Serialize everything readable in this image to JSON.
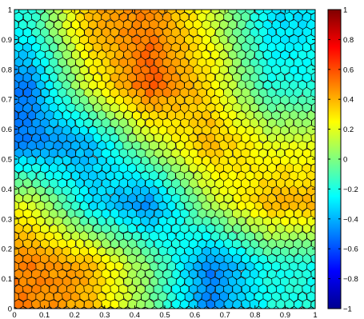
{
  "chart_data": {
    "type": "heatmap",
    "title": "",
    "xlabel": "",
    "ylabel": "",
    "xlim": [
      0,
      1
    ],
    "ylim": [
      0,
      1
    ],
    "x_ticks": [
      "0",
      "0.1",
      "0.2",
      "0.3",
      "0.4",
      "0.5",
      "0.6",
      "0.7",
      "0.8",
      "0.9",
      "1"
    ],
    "y_ticks": [
      "0",
      "0.1",
      "0.2",
      "0.3",
      "0.4",
      "0.5",
      "0.6",
      "0.7",
      "0.8",
      "0.9",
      "1"
    ],
    "grid": false,
    "cells": "polygonal (Voronoi-like) mesh, black cell edges",
    "field": {
      "description": "sampled smooth scalar field shown as cell colors",
      "x": [
        0.05,
        0.25,
        0.45,
        0.65,
        0.85
      ],
      "y": [
        0.95,
        0.75,
        0.55,
        0.35,
        0.15
      ],
      "values": [
        [
          -0.2,
          0.4,
          0.5,
          0.2,
          -0.3
        ],
        [
          -0.5,
          0.2,
          0.6,
          0.3,
          -0.2
        ],
        [
          -0.5,
          -0.4,
          0.1,
          0.4,
          0.2
        ],
        [
          0.2,
          -0.3,
          -0.5,
          0.1,
          0.4
        ],
        [
          0.5,
          0.4,
          0.0,
          -0.5,
          -0.2
        ]
      ]
    },
    "colorbar": {
      "colormap": "jet",
      "range": [
        -1,
        1
      ],
      "ticks": [
        "1",
        "0.8",
        "0.6",
        "0.4",
        "0.2",
        "0",
        "−0.2",
        "−0.4",
        "−0.6",
        "−0.8",
        "−1"
      ]
    }
  }
}
